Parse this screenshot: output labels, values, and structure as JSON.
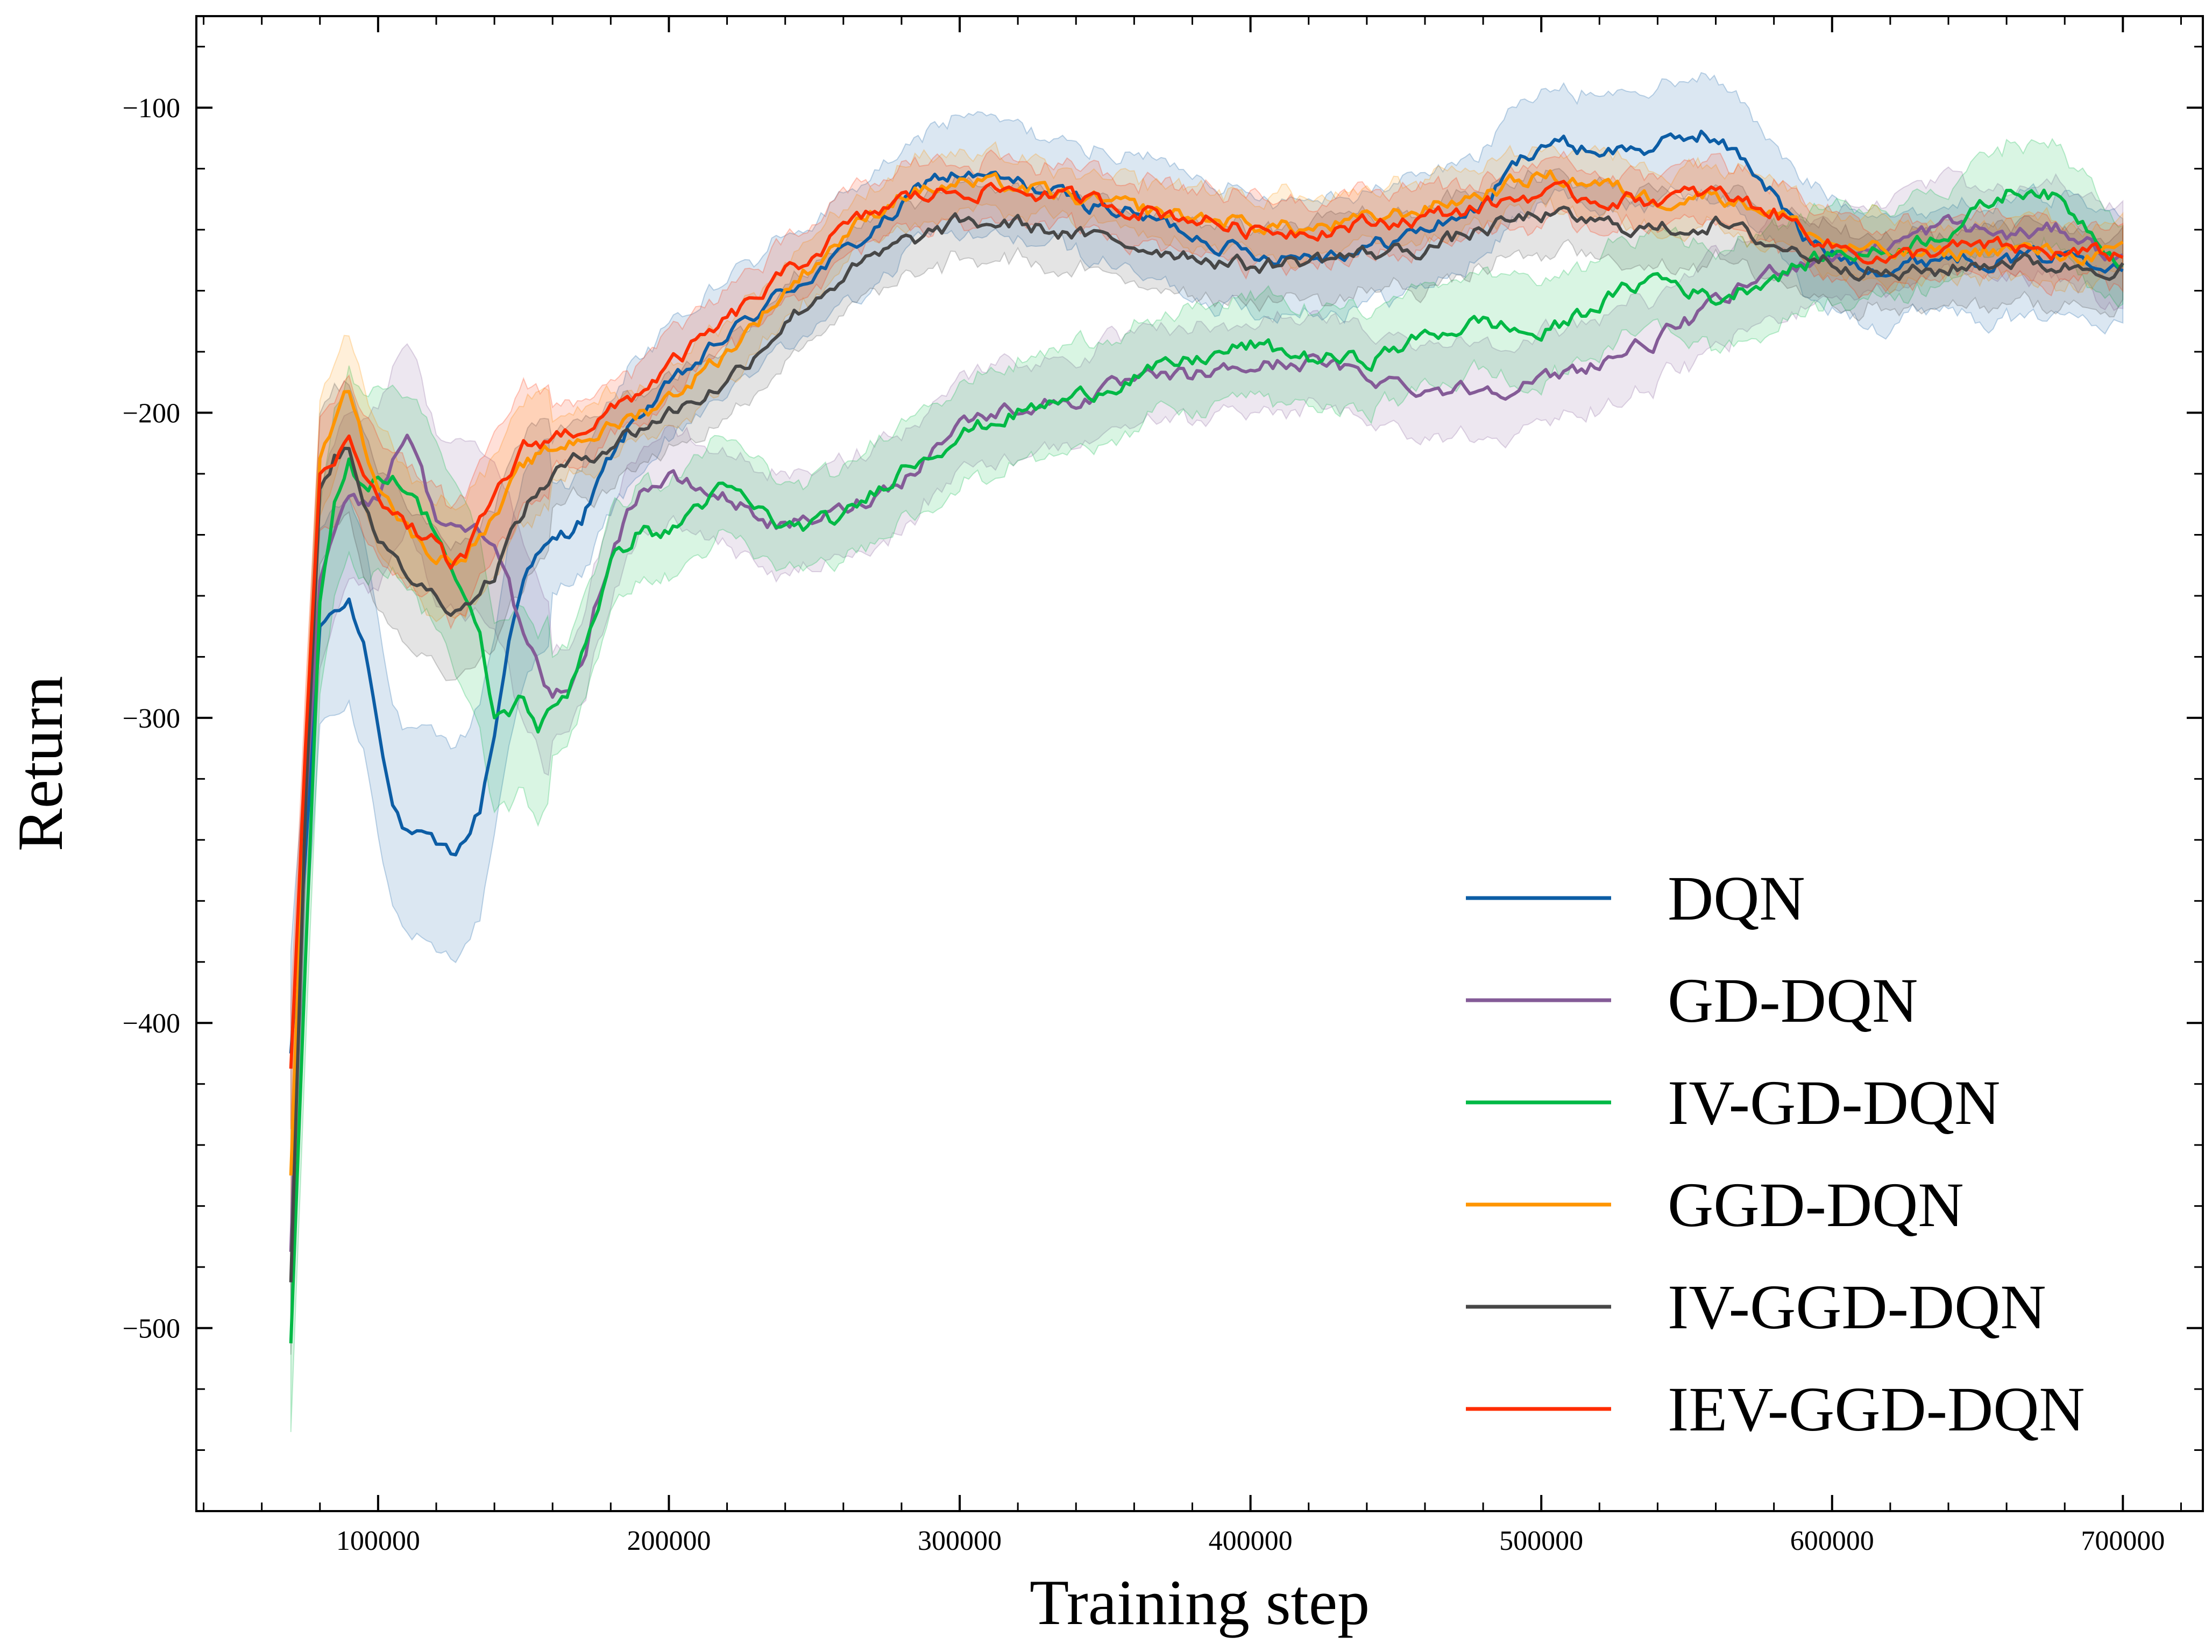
{
  "chart_data": {
    "type": "line",
    "title": "",
    "xlabel": "Training step",
    "ylabel": "Return",
    "xlim": [
      37500,
      727500
    ],
    "ylim": [
      -560,
      -70
    ],
    "grid": false,
    "legend_position": "lower-right",
    "xticks": [
      100000,
      200000,
      300000,
      400000,
      500000,
      600000,
      700000
    ],
    "xtick_labels": [
      "100000",
      "200000",
      "300000",
      "400000",
      "500000",
      "600000",
      "700000"
    ],
    "yticks": [
      -100,
      -200,
      -300,
      -400,
      -500
    ],
    "ytick_labels": [
      "−100",
      "−200",
      "−300",
      "−400",
      "−500"
    ],
    "series": [
      {
        "name": "DQN",
        "color": "#0C5DA5",
        "x": [
          70000,
          75000,
          80000,
          85000,
          90000,
          95000,
          100000,
          105000,
          110000,
          115000,
          120000,
          125000,
          130000,
          135000,
          140000,
          145000,
          150000,
          160000,
          170000,
          180000,
          190000,
          200000,
          220000,
          240000,
          260000,
          280000,
          290000,
          300000,
          320000,
          340000,
          360000,
          380000,
          400000,
          420000,
          440000,
          460000,
          480000,
          490000,
          500000,
          520000,
          540000,
          555000,
          570000,
          580000,
          590000,
          600000,
          620000,
          640000,
          660000,
          680000,
          700000
        ],
        "y": [
          -410,
          -345,
          -270,
          -265,
          -262,
          -275,
          -300,
          -328,
          -338,
          -340,
          -343,
          -345,
          -340,
          -330,
          -305,
          -275,
          -252,
          -243,
          -235,
          -215,
          -200,
          -192,
          -175,
          -160,
          -148,
          -133,
          -123,
          -122,
          -125,
          -130,
          -135,
          -141,
          -148,
          -148,
          -146,
          -140,
          -132,
          -120,
          -111,
          -114,
          -113,
          -108,
          -117,
          -128,
          -143,
          -148,
          -153,
          -148,
          -150,
          -148,
          -150
        ],
        "band": 18
      },
      {
        "name": "GD-DQN",
        "color": "#845B97",
        "x": [
          70000,
          75000,
          80000,
          85000,
          90000,
          95000,
          100000,
          105000,
          110000,
          115000,
          120000,
          125000,
          130000,
          135000,
          140000,
          145000,
          150000,
          160000,
          170000,
          180000,
          190000,
          200000,
          220000,
          240000,
          260000,
          280000,
          300000,
          320000,
          340000,
          360000,
          380000,
          400000,
          420000,
          440000,
          460000,
          480000,
          500000,
          520000,
          540000,
          560000,
          580000,
          600000,
          620000,
          640000,
          660000,
          680000,
          700000
        ],
        "y": [
          -475,
          -330,
          -255,
          -238,
          -225,
          -230,
          -228,
          -215,
          -205,
          -220,
          -235,
          -238,
          -238,
          -238,
          -240,
          -255,
          -275,
          -295,
          -283,
          -245,
          -225,
          -222,
          -228,
          -238,
          -232,
          -222,
          -203,
          -198,
          -196,
          -190,
          -188,
          -185,
          -183,
          -188,
          -192,
          -192,
          -190,
          -183,
          -176,
          -165,
          -153,
          -148,
          -145,
          -138,
          -142,
          -140,
          -150
        ],
        "band": 15
      },
      {
        "name": "IV-GD-DQN",
        "color": "#00B945",
        "x": [
          70000,
          75000,
          80000,
          85000,
          90000,
          95000,
          100000,
          105000,
          110000,
          115000,
          120000,
          125000,
          130000,
          135000,
          140000,
          145000,
          150000,
          155000,
          160000,
          165000,
          170000,
          180000,
          190000,
          200000,
          210000,
          220000,
          240000,
          260000,
          280000,
          300000,
          320000,
          340000,
          360000,
          380000,
          400000,
          420000,
          440000,
          460000,
          480000,
          500000,
          520000,
          540000,
          560000,
          580000,
          600000,
          620000,
          640000,
          660000,
          670000,
          680000,
          700000
        ],
        "y": [
          -505,
          -380,
          -262,
          -228,
          -215,
          -225,
          -222,
          -220,
          -225,
          -232,
          -238,
          -250,
          -262,
          -275,
          -300,
          -298,
          -293,
          -303,
          -298,
          -292,
          -278,
          -250,
          -238,
          -240,
          -230,
          -225,
          -238,
          -235,
          -218,
          -207,
          -200,
          -195,
          -188,
          -183,
          -178,
          -182,
          -183,
          -175,
          -170,
          -175,
          -164,
          -155,
          -163,
          -155,
          -148,
          -147,
          -140,
          -128,
          -126,
          -132,
          -150
        ],
        "band": 16
      },
      {
        "name": "GGD-DQN",
        "color": "#FF9500",
        "x": [
          70000,
          75000,
          80000,
          85000,
          90000,
          95000,
          100000,
          105000,
          110000,
          115000,
          120000,
          125000,
          130000,
          135000,
          140000,
          150000,
          160000,
          170000,
          180000,
          190000,
          200000,
          220000,
          240000,
          260000,
          280000,
          300000,
          320000,
          340000,
          360000,
          380000,
          400000,
          420000,
          440000,
          460000,
          480000,
          500000,
          520000,
          540000,
          560000,
          580000,
          600000,
          620000,
          640000,
          660000,
          680000,
          700000
        ],
        "y": [
          -450,
          -320,
          -215,
          -200,
          -192,
          -210,
          -222,
          -230,
          -238,
          -243,
          -247,
          -248,
          -245,
          -240,
          -235,
          -218,
          -212,
          -208,
          -205,
          -200,
          -195,
          -180,
          -160,
          -142,
          -128,
          -125,
          -126,
          -130,
          -133,
          -136,
          -138,
          -140,
          -137,
          -133,
          -128,
          -122,
          -125,
          -130,
          -128,
          -134,
          -145,
          -148,
          -148,
          -146,
          -148,
          -148
        ],
        "band": 10
      },
      {
        "name": "IV-GGD-DQN",
        "color": "#474747",
        "x": [
          70000,
          75000,
          80000,
          85000,
          90000,
          95000,
          100000,
          105000,
          110000,
          115000,
          120000,
          125000,
          130000,
          135000,
          140000,
          150000,
          160000,
          170000,
          180000,
          190000,
          200000,
          220000,
          240000,
          260000,
          280000,
          300000,
          320000,
          340000,
          360000,
          380000,
          400000,
          420000,
          440000,
          460000,
          480000,
          500000,
          520000,
          540000,
          560000,
          580000,
          600000,
          620000,
          640000,
          660000,
          680000,
          700000
        ],
        "y": [
          -485,
          -330,
          -225,
          -215,
          -210,
          -228,
          -240,
          -248,
          -253,
          -257,
          -260,
          -263,
          -263,
          -258,
          -252,
          -232,
          -220,
          -215,
          -210,
          -205,
          -200,
          -190,
          -170,
          -155,
          -145,
          -138,
          -138,
          -142,
          -145,
          -148,
          -152,
          -150,
          -148,
          -146,
          -140,
          -135,
          -138,
          -140,
          -138,
          -145,
          -150,
          -155,
          -153,
          -150,
          -152,
          -152
        ],
        "band": 12
      },
      {
        "name": "IEV-GGD-DQN",
        "color": "#FF2C00",
        "x": [
          70000,
          75000,
          80000,
          85000,
          90000,
          95000,
          100000,
          105000,
          110000,
          115000,
          120000,
          125000,
          130000,
          135000,
          140000,
          150000,
          160000,
          170000,
          180000,
          190000,
          200000,
          220000,
          240000,
          260000,
          280000,
          300000,
          320000,
          340000,
          360000,
          380000,
          400000,
          420000,
          440000,
          460000,
          480000,
          500000,
          520000,
          540000,
          560000,
          580000,
          600000,
          620000,
          640000,
          660000,
          680000,
          700000
        ],
        "y": [
          -415,
          -310,
          -220,
          -215,
          -210,
          -218,
          -225,
          -232,
          -238,
          -240,
          -243,
          -250,
          -248,
          -238,
          -228,
          -212,
          -208,
          -205,
          -200,
          -193,
          -185,
          -170,
          -155,
          -140,
          -130,
          -127,
          -127,
          -130,
          -133,
          -136,
          -140,
          -140,
          -138,
          -136,
          -132,
          -128,
          -130,
          -130,
          -128,
          -134,
          -145,
          -150,
          -146,
          -146,
          -148,
          -148
        ],
        "band": 10
      }
    ]
  }
}
